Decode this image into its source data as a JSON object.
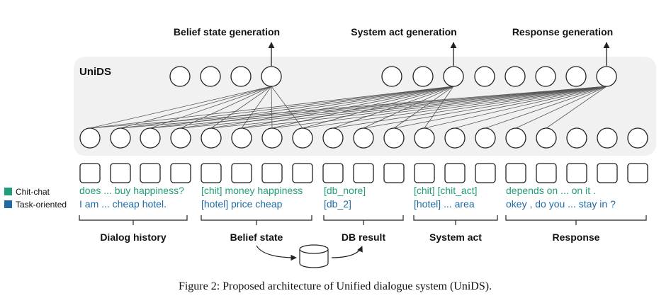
{
  "model_label": "UniDS",
  "outputs": [
    {
      "label": "Belief state generation"
    },
    {
      "label": "System act generation"
    },
    {
      "label": "Response generation"
    }
  ],
  "legend": [
    {
      "label": "Chit-chat",
      "color": "#1f9e7a"
    },
    {
      "label": "Task-oriented",
      "color": "#1f6aa5"
    }
  ],
  "segments": [
    {
      "label": "Dialog history",
      "chit": "does ... buy happiness?",
      "task": "I am ... cheap hotel."
    },
    {
      "label": "Belief state",
      "chit": "[chit] money happiness",
      "task": "[hotel] price cheap"
    },
    {
      "label": "DB result",
      "chit": "[db_nore]",
      "task": "[db_2]"
    },
    {
      "label": "System act",
      "chit": "[chit] [chit_act]",
      "task": "[hotel] ... area"
    },
    {
      "label": "Response",
      "chit": "depends on ... on it .",
      "task": "okey , do you ... stay in ?"
    }
  ],
  "db_icon": "database-icon",
  "caption": "Figure 2: Proposed architecture of Unified dialogue system (UniDS).",
  "colors": {
    "panel": "#f1f1f1",
    "chit": "#1f9e7a",
    "task": "#1f6aa5",
    "stroke": "#222222",
    "edge": "#555555"
  }
}
